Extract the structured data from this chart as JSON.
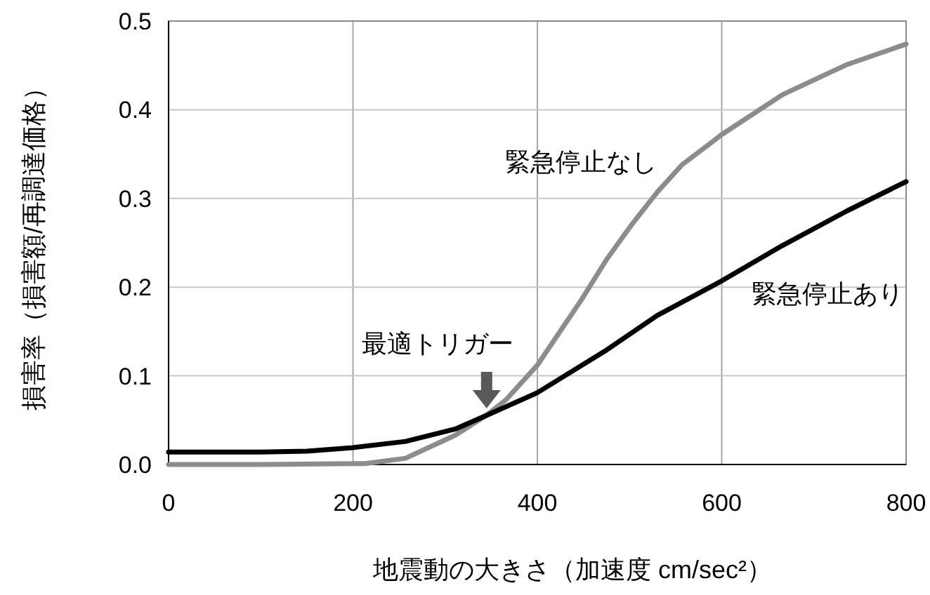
{
  "chart_data": {
    "type": "line",
    "xlabel": "地震動の大きさ（加速度 cm/sec²）",
    "ylabel": "損害率（損害額/再調達価格）",
    "xlim": [
      0,
      800
    ],
    "xticks": [
      0,
      200,
      400,
      600,
      800
    ],
    "ylim": [
      0,
      0.5
    ],
    "yticks": [
      {
        "value": 0,
        "label": "0.0"
      },
      0.1,
      0.2,
      0.3,
      0.4,
      0.5
    ],
    "grid": true,
    "series": [
      {
        "name": "緊急停止なし",
        "color": "#8c8c8c",
        "x": [
          0,
          100,
          200,
          213,
          257,
          311,
          344,
          366,
          400,
          448,
          475,
          502,
          530,
          557,
          600,
          666,
          736,
          800
        ],
        "values": [
          0,
          0,
          0.001,
          0.001,
          0.007,
          0.033,
          0.055,
          0.073,
          0.112,
          0.186,
          0.231,
          0.27,
          0.307,
          0.338,
          0.372,
          0.417,
          0.451,
          0.474
        ]
      },
      {
        "name": "緊急停止あり",
        "color": "#000000",
        "x": [
          0,
          100,
          150,
          200,
          257,
          311,
          344,
          400,
          475,
          530,
          600,
          666,
          736,
          800
        ],
        "values": [
          0.014,
          0.014,
          0.015,
          0.019,
          0.026,
          0.04,
          0.055,
          0.081,
          0.129,
          0.168,
          0.207,
          0.247,
          0.286,
          0.319
        ]
      }
    ],
    "annotations": [
      {
        "text": "最適トリガー",
        "x": 345,
        "y": 0.057
      }
    ]
  }
}
